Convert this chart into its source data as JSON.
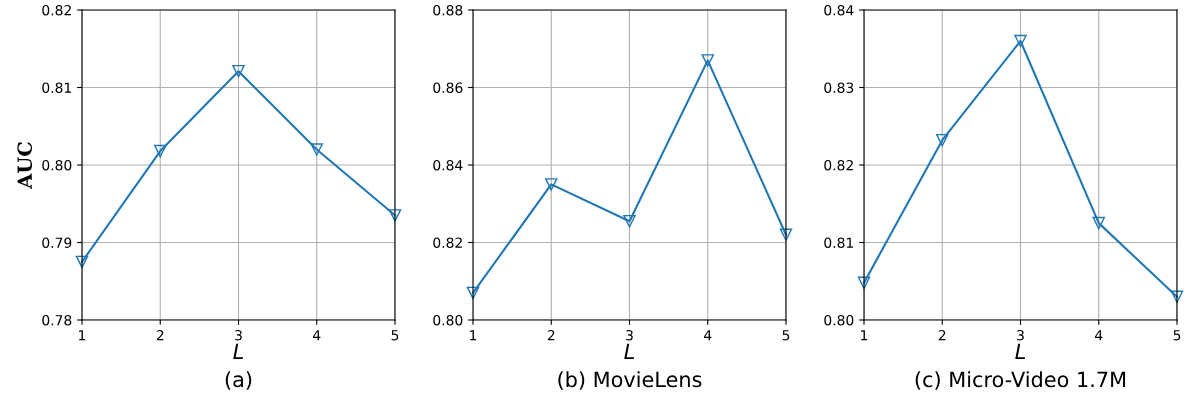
{
  "chart_data": [
    {
      "type": "line",
      "title": "(a)",
      "xlabel": "L",
      "ylabel": "AUC",
      "x": [
        1,
        2,
        3,
        4,
        5
      ],
      "xlim": [
        1,
        5
      ],
      "xticks": [
        1,
        2,
        3,
        4,
        5
      ],
      "ylim": [
        0.78,
        0.82
      ],
      "yticks": [
        {
          "value": 0.78,
          "label": "0.78"
        },
        {
          "value": 0.79,
          "label": "0.79"
        },
        {
          "value": 0.8,
          "label": "0.80"
        },
        {
          "value": 0.81,
          "label": "0.81"
        },
        {
          "value": 0.82,
          "label": "0.82"
        }
      ],
      "grid": true,
      "marker": "triangle",
      "line_style": "solid",
      "series": [
        {
          "color": "#1f77b4",
          "values": [
            0.7875,
            0.8018,
            0.8121,
            0.802,
            0.7935
          ]
        }
      ]
    },
    {
      "type": "line",
      "title": "(b) MovieLens",
      "xlabel": "L",
      "x": [
        1,
        2,
        3,
        4,
        5
      ],
      "xlim": [
        1,
        5
      ],
      "xticks": [
        1,
        2,
        3,
        4,
        5
      ],
      "ylim": [
        0.8,
        0.88
      ],
      "yticks": [
        {
          "value": 0.8,
          "label": "0.80"
        },
        {
          "value": 0.82,
          "label": "0.82"
        },
        {
          "value": 0.84,
          "label": "0.84"
        },
        {
          "value": 0.86,
          "label": "0.86"
        },
        {
          "value": 0.88,
          "label": "0.88"
        }
      ],
      "grid": true,
      "marker": "triangle",
      "line_style": "solid",
      "series": [
        {
          "color": "#1f77b4",
          "values": [
            0.807,
            0.835,
            0.8255,
            0.867,
            0.822
          ]
        }
      ]
    },
    {
      "type": "line",
      "title": "(c) Micro-Video 1.7M",
      "xlabel": "L",
      "x": [
        1,
        2,
        3,
        4,
        5
      ],
      "xlim": [
        1,
        5
      ],
      "xticks": [
        1,
        2,
        3,
        4,
        5
      ],
      "ylim": [
        0.8,
        0.84
      ],
      "yticks": [
        {
          "value": 0.8,
          "label": "0.80"
        },
        {
          "value": 0.81,
          "label": "0.81"
        },
        {
          "value": 0.82,
          "label": "0.82"
        },
        {
          "value": 0.83,
          "label": "0.83"
        },
        {
          "value": 0.84,
          "label": "0.84"
        }
      ],
      "grid": true,
      "marker": "triangle",
      "line_style": "solid",
      "series": [
        {
          "color": "#1f77b4",
          "values": [
            0.8048,
            0.8232,
            0.836,
            0.8125,
            0.803
          ]
        }
      ]
    }
  ]
}
